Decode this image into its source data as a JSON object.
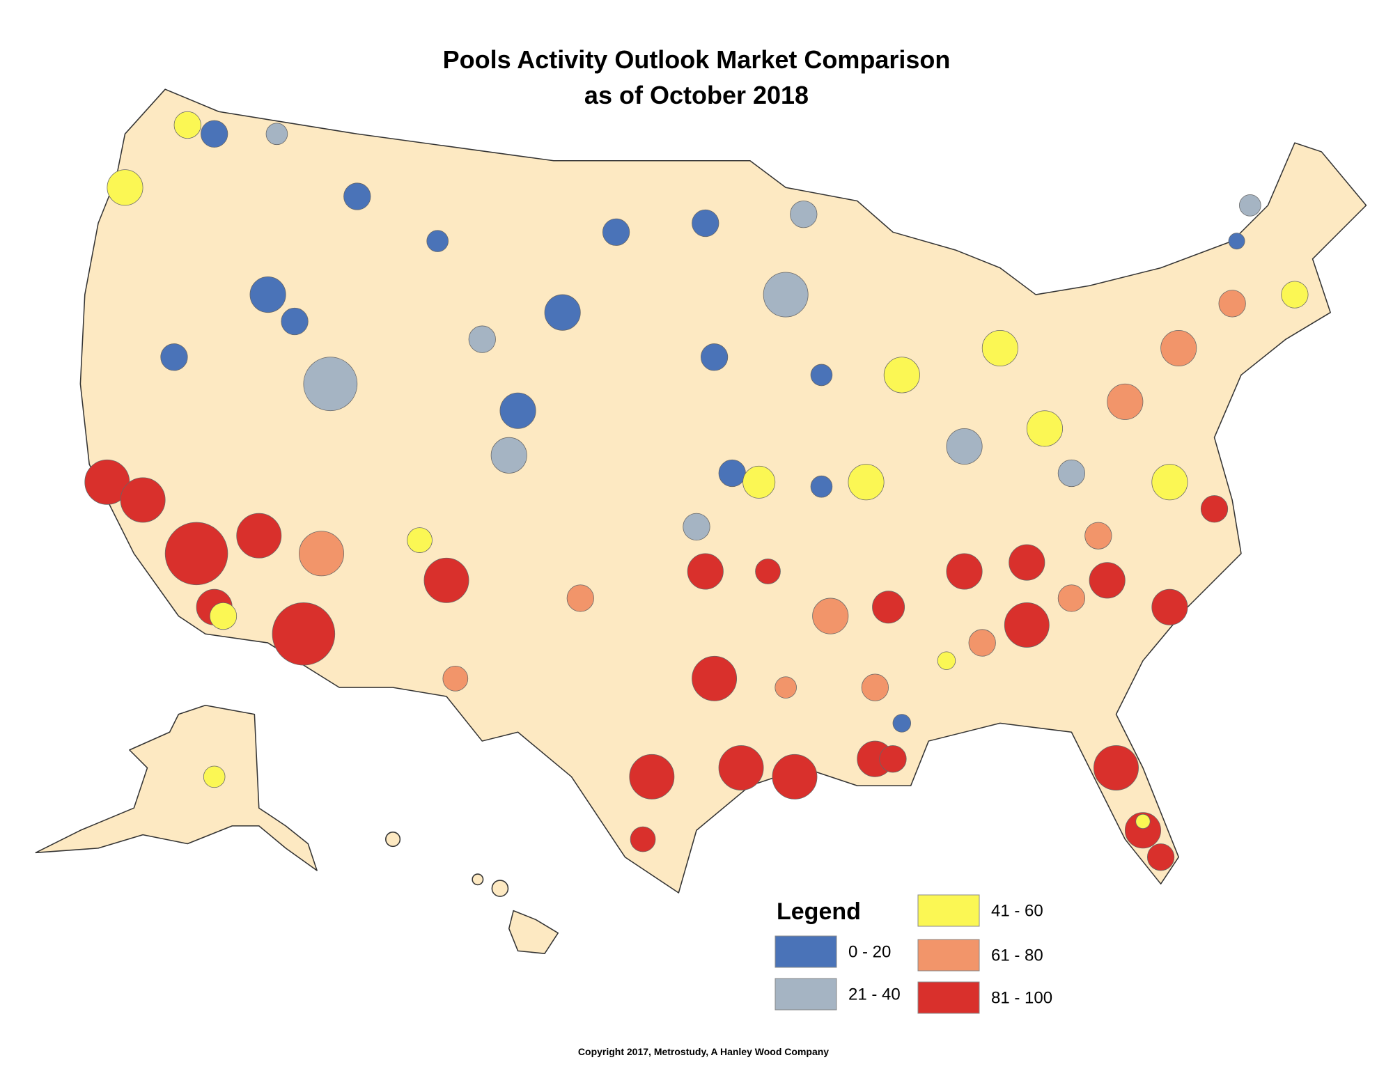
{
  "title": [
    "Pools Activity Outlook Market Comparison",
    "as of October 2018"
  ],
  "legend": {
    "title": "Legend",
    "items": [
      {
        "label": "0 - 20",
        "color": "#4a73b8"
      },
      {
        "label": "21 - 40",
        "color": "#a5b4c3"
      },
      {
        "label": "41 - 60",
        "color": "#fbf754"
      },
      {
        "label": "61 - 80",
        "color": "#f2956a"
      },
      {
        "label": "81 - 100",
        "color": "#d9302c"
      }
    ]
  },
  "copyright": "Copyright 2017, Metrostudy, A Hanley Wood Company"
}
